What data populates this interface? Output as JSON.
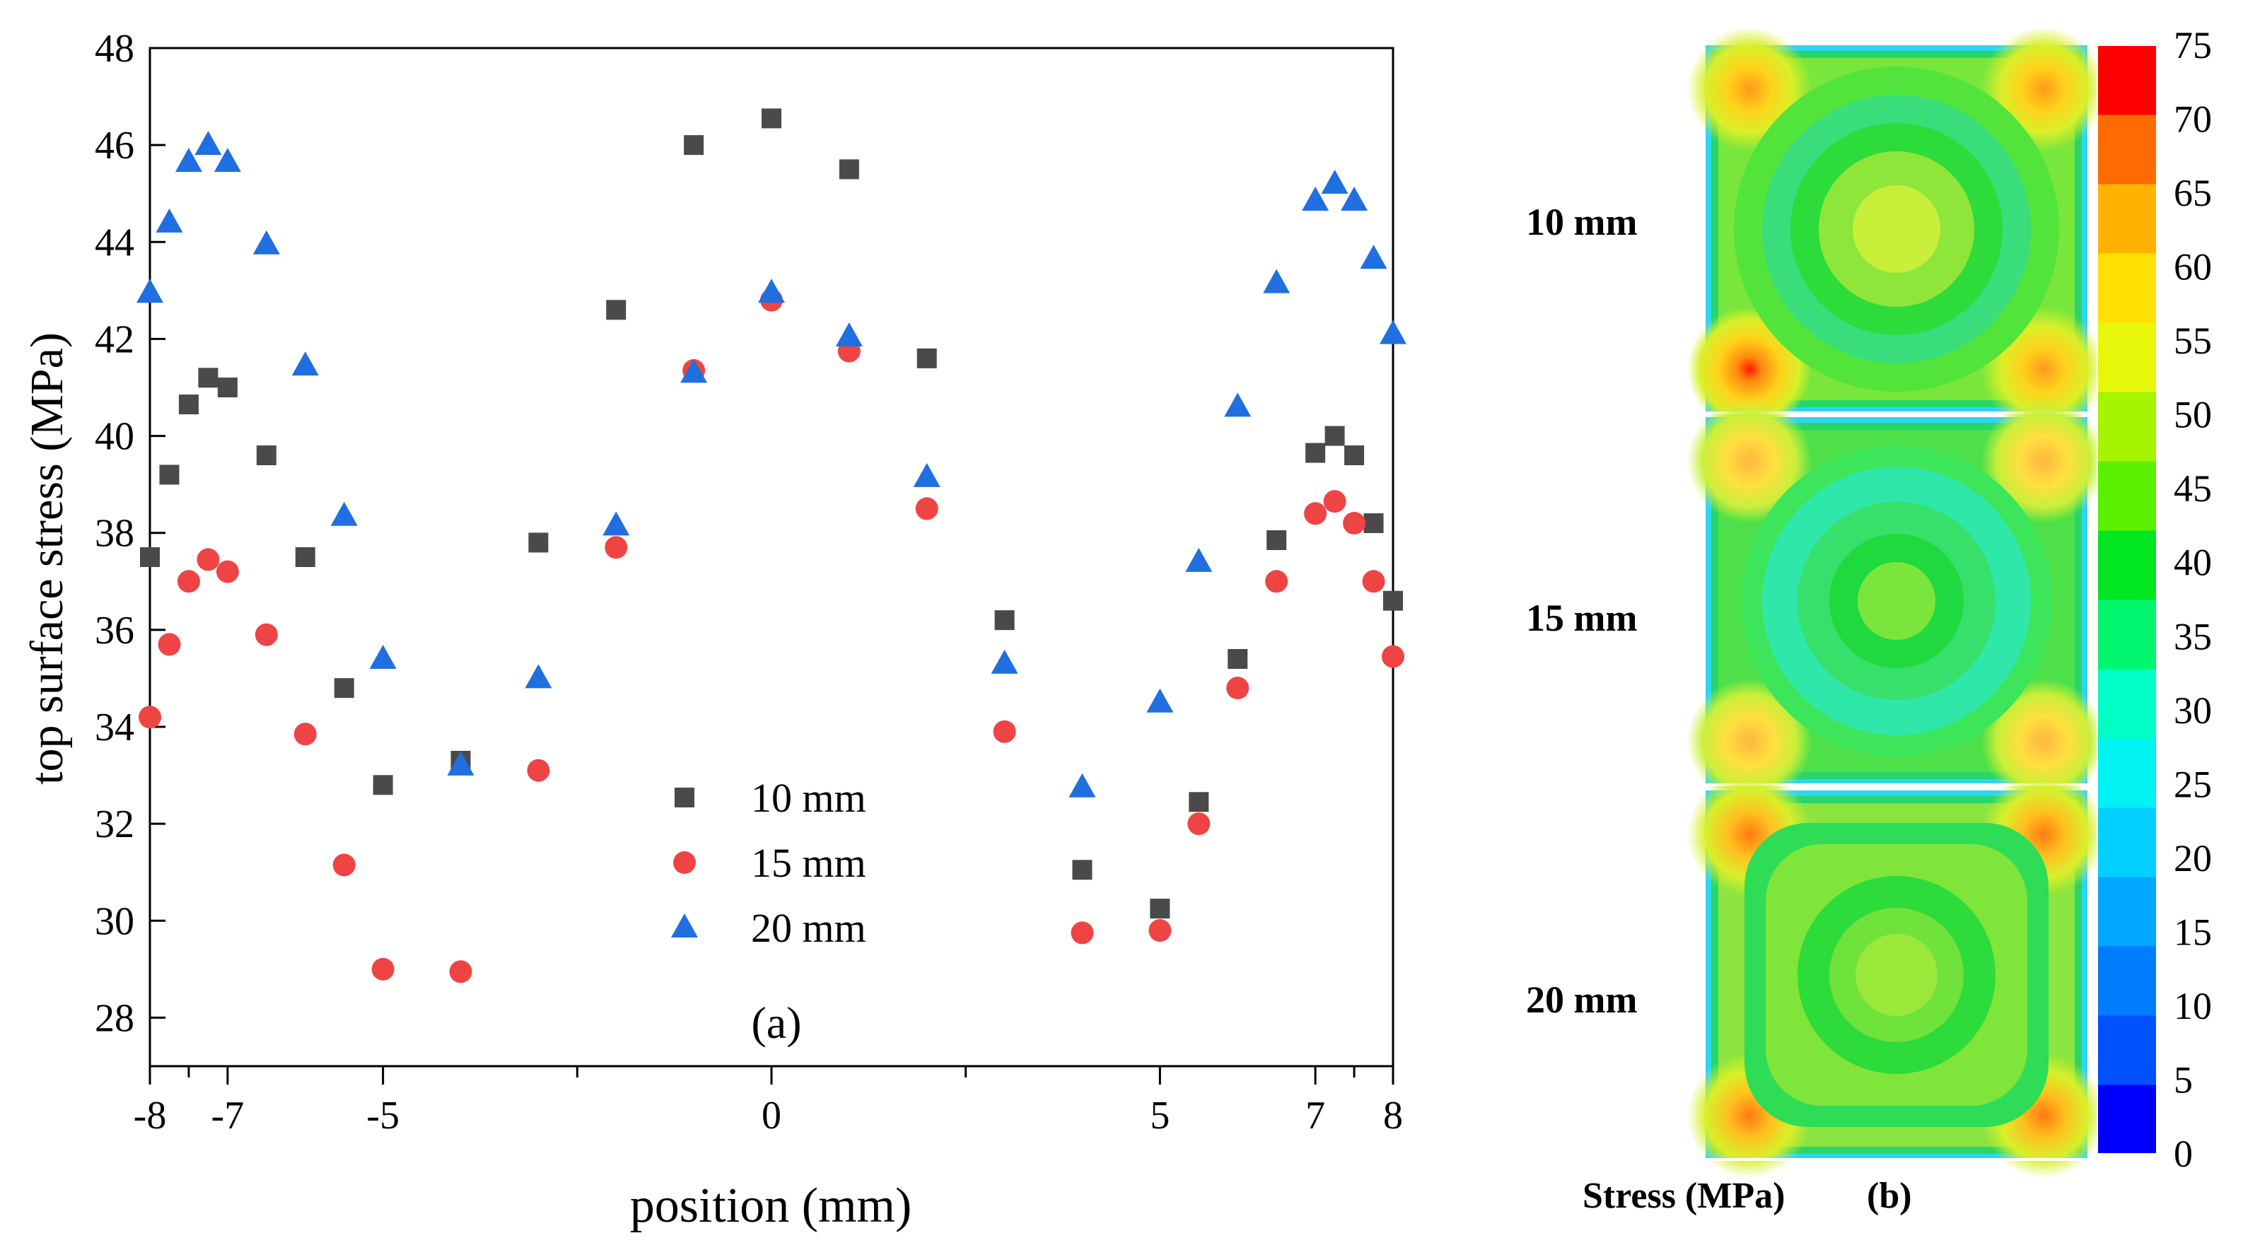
{
  "chart_data": [
    {
      "panel": "a",
      "type": "scatter",
      "panel_label": "(a)",
      "xlabel": "position (mm)",
      "ylabel": "top surface stress (MPa)",
      "xlim": [
        -8,
        8
      ],
      "ylim": [
        27,
        48
      ],
      "x_ticks": [
        -8,
        -7,
        -5,
        0,
        5,
        7,
        8
      ],
      "x_minor_ticks": [
        -7.5,
        -2.5,
        2.5,
        7.5
      ],
      "y_ticks": [
        28,
        30,
        32,
        34,
        36,
        38,
        40,
        42,
        44,
        46,
        48
      ],
      "legend_position": "lower-center",
      "series": [
        {
          "name": "10 mm",
          "marker": "square",
          "color": "#4a4a4a",
          "x": [
            -8,
            -7.75,
            -7.5,
            -7.25,
            -7,
            -6.5,
            -6,
            -5.5,
            -5,
            -4,
            -3,
            -2,
            -1,
            0,
            1,
            2,
            3,
            4,
            5,
            5.5,
            6,
            6.5,
            7,
            7.25,
            7.5,
            7.75,
            8
          ],
          "y": [
            37.5,
            39.2,
            40.65,
            41.2,
            41.0,
            39.6,
            37.5,
            34.8,
            32.8,
            33.3,
            37.8,
            42.6,
            46.0,
            46.55,
            45.5,
            41.6,
            36.2,
            31.05,
            30.25,
            32.45,
            35.4,
            37.85,
            39.65,
            40.0,
            39.6,
            38.2,
            36.6
          ]
        },
        {
          "name": "15 mm",
          "marker": "circle",
          "color": "#ef4444",
          "x": [
            -8,
            -7.75,
            -7.5,
            -7.25,
            -7,
            -6.5,
            -6,
            -5.5,
            -5,
            -4,
            -3,
            -2,
            -1,
            0,
            1,
            2,
            3,
            4,
            5,
            5.5,
            6,
            6.5,
            7,
            7.25,
            7.5,
            7.75,
            8
          ],
          "y": [
            34.2,
            35.7,
            37.0,
            37.45,
            37.2,
            35.9,
            33.85,
            31.15,
            29.0,
            28.95,
            33.1,
            37.7,
            41.35,
            42.8,
            41.75,
            38.5,
            33.9,
            29.75,
            29.8,
            32.0,
            34.8,
            37.0,
            38.4,
            38.65,
            38.2,
            37.0,
            35.45
          ]
        },
        {
          "name": "20 mm",
          "marker": "triangle",
          "color": "#1f6fe0",
          "x": [
            -8,
            -7.75,
            -7.5,
            -7.25,
            -7,
            -6.5,
            -6,
            -5.5,
            -5,
            -4,
            -3,
            -2,
            -1,
            0,
            1,
            2,
            3,
            4,
            5,
            5.5,
            6,
            6.5,
            7,
            7.25,
            7.5,
            7.75,
            8
          ],
          "y": [
            42.95,
            44.4,
            45.65,
            46.0,
            45.65,
            43.95,
            41.45,
            38.35,
            35.4,
            33.2,
            35.0,
            38.15,
            41.3,
            42.95,
            42.05,
            39.15,
            35.3,
            32.75,
            34.5,
            37.4,
            40.6,
            43.15,
            44.85,
            45.2,
            44.85,
            43.65,
            42.1
          ]
        }
      ]
    },
    {
      "panel": "b",
      "type": "heatmap",
      "panel_label": "(b)",
      "colorbar_label": "Stress (MPa)",
      "colorbar_ticks": [
        0,
        5,
        10,
        15,
        20,
        25,
        30,
        35,
        40,
        45,
        50,
        55,
        60,
        65,
        70,
        75
      ],
      "colorbar_colors": [
        "#0000ff",
        "#0052ff",
        "#007dff",
        "#00a6ff",
        "#00cfff",
        "#00f2f2",
        "#00ffc4",
        "#00f56e",
        "#00e620",
        "#5cf000",
        "#a6f500",
        "#e6f70a",
        "#ffe000",
        "#ffb300",
        "#ff6b00",
        "#ff0000"
      ],
      "maps": [
        {
          "label": "10 mm",
          "center_color": "#c8ef3a",
          "ring_color": "#2ddb3a",
          "outer_color": "#79e63c",
          "corner_color": "#ff9a1c",
          "hot_corner_color": "#ff1a00"
        },
        {
          "label": "15 mm",
          "center_color": "#7ae63c",
          "ring_color": "#2fe7a8",
          "outer_color": "#4ee049",
          "corner_color": "#ffb640",
          "hot_corner_color": "#ffb640"
        },
        {
          "label": "20 mm",
          "center_color": "#9be83a",
          "ring_color": "#2ddb3a",
          "outer_color": "#8be43f",
          "corner_color": "#ff8a10",
          "hot_corner_color": "#ff8a10"
        }
      ]
    }
  ]
}
